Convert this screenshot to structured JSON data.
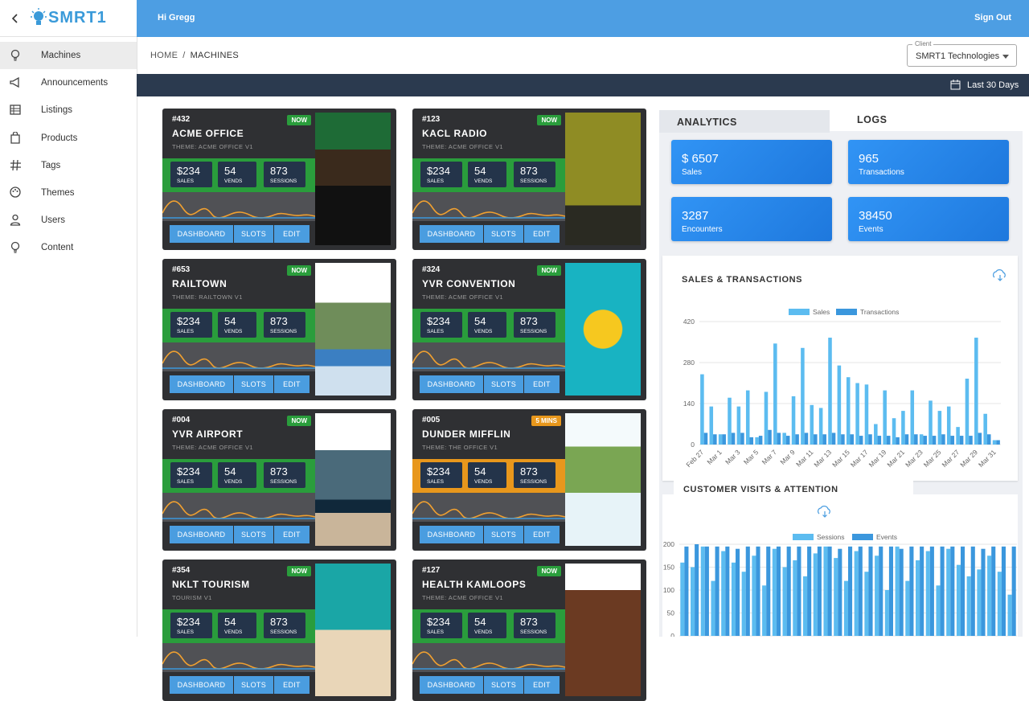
{
  "brand": "SMRT1",
  "sidebar": {
    "nav": [
      "Machines",
      "Announcements",
      "Listings",
      "Products",
      "Tags",
      "Themes",
      "Users",
      "Content"
    ]
  },
  "header": {
    "greeting": "Hi Gregg",
    "sign_out": "Sign Out"
  },
  "breadcrumb": {
    "items": [
      "HOME",
      "MACHINES"
    ],
    "separator": "/"
  },
  "client": {
    "label": "Client",
    "value": "SMRT1 Technologies"
  },
  "date_range": "Last 30 Days",
  "stat_labels": {
    "sales": "SALES",
    "vends": "VENDS",
    "sessions": "SESSIONS"
  },
  "machine_buttons": [
    "DASHBOARD",
    "SLOTS",
    "EDIT"
  ],
  "machines": [
    {
      "id": "#432",
      "status": "NOW",
      "name": "ACME OFFICE",
      "theme": "THEME: ACME OFFICE V1",
      "sales": "$234",
      "vends": "54",
      "sessions": "873",
      "color": "#2a9d3c"
    },
    {
      "id": "#123",
      "status": "NOW",
      "name": "KACL RADIO",
      "theme": "THEME: ACME OFFICE V1",
      "sales": "$234",
      "vends": "54",
      "sessions": "873",
      "color": "#2a9d3c"
    },
    {
      "id": "#653",
      "status": "NOW",
      "name": "RAILTOWN",
      "theme": "THEME: RAILTOWN V1",
      "sales": "$234",
      "vends": "54",
      "sessions": "873",
      "color": "#2a9d3c"
    },
    {
      "id": "#324",
      "status": "NOW",
      "name": "YVR CONVENTION",
      "theme": "THEME: ACME OFFICE V1",
      "sales": "$234",
      "vends": "54",
      "sessions": "873",
      "color": "#2a9d3c"
    },
    {
      "id": "#004",
      "status": "NOW",
      "name": "YVR AIRPORT",
      "theme": "THEME: ACME OFFICE V1",
      "sales": "$234",
      "vends": "54",
      "sessions": "873",
      "color": "#2a9d3c"
    },
    {
      "id": "#005",
      "status": "5 MINS",
      "name": "DUNDER MIFFLIN",
      "theme": "THEME: THE OFFICE V1",
      "sales": "$234",
      "vends": "54",
      "sessions": "873",
      "color": "#e8971c"
    },
    {
      "id": "#354",
      "status": "NOW",
      "name": "NKLT TOURISM",
      "theme": "TOURISM V1",
      "sales": "$234",
      "vends": "54",
      "sessions": "873",
      "color": "#2a9d3c"
    },
    {
      "id": "#127",
      "status": "NOW",
      "name": "HEALTH KAMLOOPS",
      "theme": "THEME: ACME OFFICE V1",
      "sales": "$234",
      "vends": "54",
      "sessions": "873",
      "color": "#2a9d3c"
    }
  ],
  "tabs": [
    "ANALYTICS",
    "LOGS"
  ],
  "stats": [
    {
      "value": "$ 6507",
      "label": "Sales"
    },
    {
      "value": "965",
      "label": "Transactions"
    },
    {
      "value": "3287",
      "label": "Encounters"
    },
    {
      "value": "38450",
      "label": "Events"
    }
  ],
  "chart_data": [
    {
      "type": "bar",
      "title": "SALES & TRANSACTIONS",
      "categories": [
        "Feb 27",
        null,
        "Mar 1",
        null,
        "Mar 3",
        null,
        "Mar 5",
        null,
        "Mar 7",
        null,
        "Mar 9",
        null,
        "Mar 11",
        null,
        "Mar 13",
        null,
        "Mar 15",
        null,
        "Mar 17",
        null,
        "Mar 19",
        null,
        "Mar 21",
        null,
        "Mar 23",
        null,
        "Mar 25",
        null,
        "Mar 27",
        null,
        "Mar 29",
        null,
        "Mar 31"
      ],
      "series": [
        {
          "name": "Sales",
          "color": "#5cbcf0",
          "values": [
            240,
            130,
            35,
            160,
            130,
            185,
            25,
            180,
            345,
            40,
            165,
            330,
            135,
            125,
            365,
            270,
            230,
            210,
            205,
            70,
            185,
            90,
            115,
            185,
            35,
            150,
            115,
            130,
            60,
            225,
            365,
            105,
            15
          ]
        },
        {
          "name": "Transactions",
          "color": "#3b97dd",
          "values": [
            40,
            35,
            35,
            40,
            40,
            25,
            30,
            50,
            40,
            30,
            35,
            40,
            35,
            35,
            40,
            35,
            35,
            30,
            35,
            30,
            30,
            25,
            35,
            35,
            30,
            30,
            35,
            30,
            30,
            30,
            40,
            35,
            15
          ]
        }
      ],
      "ylim": [
        0,
        420
      ],
      "yticks": [
        0,
        140,
        280,
        420
      ],
      "grid": true,
      "legend": "top"
    },
    {
      "type": "bar",
      "title": "CUSTOMER VISITS & ATTENTION",
      "categories": [
        null,
        null,
        null,
        null,
        null,
        null,
        null,
        null,
        null,
        null,
        null,
        null,
        null,
        null,
        null,
        null,
        null,
        null,
        null,
        null,
        null,
        null,
        null,
        null,
        null,
        null,
        null,
        null,
        null,
        null,
        null,
        null,
        null
      ],
      "series": [
        {
          "name": "Sessions",
          "color": "#5cbcf0",
          "values": [
            160,
            150,
            195,
            120,
            185,
            160,
            140,
            175,
            110,
            190,
            150,
            165,
            130,
            180,
            195,
            170,
            120,
            185,
            140,
            175,
            100,
            195,
            120,
            165,
            185,
            110,
            190,
            155,
            130,
            145,
            175,
            140,
            90
          ]
        },
        {
          "name": "Events",
          "color": "#3b97dd",
          "values": [
            195,
            200,
            195,
            195,
            195,
            190,
            195,
            195,
            195,
            195,
            195,
            195,
            195,
            195,
            195,
            190,
            195,
            195,
            195,
            195,
            195,
            190,
            195,
            195,
            195,
            195,
            195,
            195,
            195,
            190,
            195,
            195,
            195
          ]
        }
      ],
      "ylim": [
        0,
        200
      ],
      "yticks": [
        0,
        50,
        100,
        150,
        200
      ],
      "grid": true,
      "legend": "top"
    }
  ]
}
